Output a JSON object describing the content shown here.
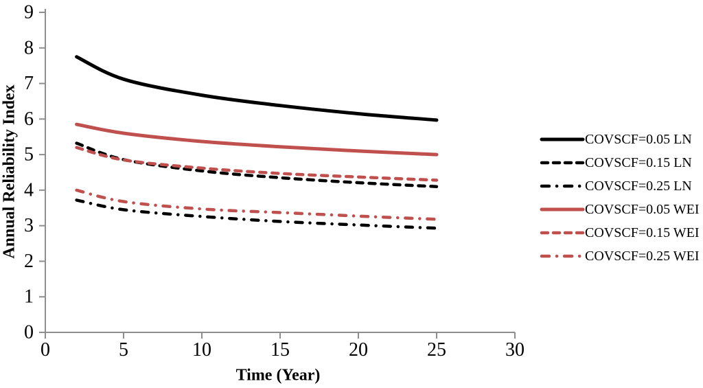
{
  "figure": {
    "background": "#ffffff",
    "text_color": "#000000"
  },
  "chart_data": {
    "type": "line",
    "title": "",
    "xlabel": "Time (Year)",
    "ylabel": "Annual Reliability Index",
    "xlim": [
      0,
      30
    ],
    "ylim": [
      0,
      9
    ],
    "xticks": [
      0,
      5,
      10,
      15,
      20,
      25,
      30
    ],
    "yticks": [
      0,
      1,
      2,
      3,
      4,
      5,
      6,
      7,
      8,
      9
    ],
    "grid": false,
    "legend_position": "right",
    "axis_color": "#8e8e8e",
    "x": [
      2,
      5,
      10,
      15,
      20,
      25
    ],
    "series": [
      {
        "name": "COVSCF=0.05 LN",
        "color": "#000000",
        "style": "solid",
        "values": [
          7.75,
          7.12,
          6.67,
          6.38,
          6.15,
          5.97
        ]
      },
      {
        "name": "COVSCF=0.15 LN",
        "color": "#000000",
        "style": "dashed",
        "values": [
          5.32,
          4.86,
          4.54,
          4.35,
          4.21,
          4.1
        ]
      },
      {
        "name": "COVSCF=0.25 LN",
        "color": "#000000",
        "style": "dashdot",
        "values": [
          3.72,
          3.45,
          3.26,
          3.12,
          3.02,
          2.93
        ]
      },
      {
        "name": "COVSCF=0.05 WEI",
        "color": "#c0504d",
        "style": "solid",
        "values": [
          5.85,
          5.6,
          5.37,
          5.22,
          5.1,
          5.0
        ]
      },
      {
        "name": "COVSCF=0.15 WEI",
        "color": "#c0504d",
        "style": "dashed",
        "values": [
          5.2,
          4.85,
          4.62,
          4.47,
          4.37,
          4.28
        ]
      },
      {
        "name": "COVSCF=0.25 WEI",
        "color": "#c0504d",
        "style": "dashdot",
        "values": [
          4.0,
          3.68,
          3.47,
          3.37,
          3.27,
          3.18
        ]
      }
    ]
  }
}
